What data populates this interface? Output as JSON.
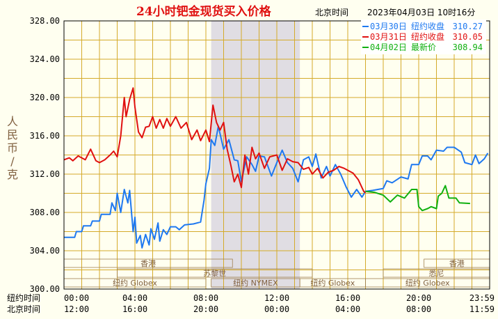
{
  "chart_data": {
    "type": "line",
    "title": "24小时钯金现货买入价格",
    "timestamp_label": "北京时间",
    "timestamp": "2023年04月03日 10时16分",
    "ylabel": "人民币/克",
    "ylim": [
      300,
      328
    ],
    "yticks": [
      "328.00",
      "324.00",
      "320.00",
      "316.00",
      "312.00",
      "308.00",
      "304.00",
      "300.00"
    ],
    "x_rows": [
      {
        "label": "纽约时间",
        "ticks": [
          "00:00",
          "04:00",
          "08:00",
          "12:00",
          "16:00",
          "20:00",
          "23:59"
        ]
      },
      {
        "label": "北京时间",
        "ticks": [
          "12:00",
          "16:00",
          "20:00",
          "00:00",
          "04:00",
          "08:00",
          "11:59"
        ]
      }
    ],
    "xlim": [
      0,
      24
    ],
    "legend": [
      {
        "name": "03月30日",
        "label": "纽约收盘",
        "value": "310.27",
        "color": "#1e78f0"
      },
      {
        "name": "03月31日",
        "label": "纽约收盘",
        "value": "310.05",
        "color": "#e01010"
      },
      {
        "name": "04月02日",
        "label": "最新价",
        "value": "308.94",
        "color": "#10b010"
      }
    ],
    "sessions": [
      {
        "row": 0,
        "label": "香港",
        "start": 0,
        "end": 9.5
      },
      {
        "row": 1,
        "label": "苏黎世",
        "start": 3,
        "end": 14
      },
      {
        "row": 2,
        "label": "纽约 Globex",
        "start": 0,
        "end": 8
      },
      {
        "row": 2,
        "label": "纽约 NYMEX",
        "start": 8.3,
        "end": 13.3
      },
      {
        "row": 2,
        "label": "纽约 Globex",
        "start": 13.3,
        "end": 17
      },
      {
        "row": 0,
        "label": "香港",
        "start": 20.3,
        "end": 24
      },
      {
        "row": 1,
        "label": "悉尼",
        "start": 18,
        "end": 24
      },
      {
        "row": 2,
        "label": "纽约 Globex",
        "start": 17,
        "end": 24
      }
    ],
    "shaded": [
      8.3,
      13.3
    ],
    "series": [
      {
        "name": "03月30日",
        "color": "#1e78f0",
        "points": [
          [
            0,
            305.4
          ],
          [
            0.6,
            305.4
          ],
          [
            0.7,
            306
          ],
          [
            1,
            306
          ],
          [
            1.1,
            306.6
          ],
          [
            1.5,
            306.6
          ],
          [
            1.6,
            307.1
          ],
          [
            2,
            307.1
          ],
          [
            2.1,
            307.8
          ],
          [
            2.6,
            307.8
          ],
          [
            2.7,
            309
          ],
          [
            2.9,
            308.2
          ],
          [
            3,
            310
          ],
          [
            3.2,
            308
          ],
          [
            3.4,
            310.4
          ],
          [
            3.6,
            309
          ],
          [
            3.7,
            310.3
          ],
          [
            3.9,
            306
          ],
          [
            4,
            307.5
          ],
          [
            4.1,
            304.8
          ],
          [
            4.3,
            305.6
          ],
          [
            4.4,
            304.3
          ],
          [
            4.6,
            305.7
          ],
          [
            4.8,
            304.6
          ],
          [
            4.9,
            306.3
          ],
          [
            5.1,
            305.2
          ],
          [
            5.3,
            306.9
          ],
          [
            5.4,
            305
          ],
          [
            5.6,
            306.2
          ],
          [
            5.8,
            305.7
          ],
          [
            6,
            306.5
          ],
          [
            6.3,
            306.5
          ],
          [
            6.5,
            306.2
          ],
          [
            6.8,
            306.7
          ],
          [
            7.3,
            306.8
          ],
          [
            7.7,
            307
          ],
          [
            7.9,
            309.3
          ],
          [
            8,
            311
          ],
          [
            8.2,
            312.6
          ],
          [
            8.3,
            315.6
          ],
          [
            8.5,
            315
          ],
          [
            8.7,
            317
          ],
          [
            9,
            314.6
          ],
          [
            9.3,
            315.6
          ],
          [
            9.6,
            313.5
          ],
          [
            9.8,
            313.4
          ],
          [
            10,
            311.2
          ],
          [
            10.3,
            313.8
          ],
          [
            10.6,
            313
          ],
          [
            10.8,
            312.3
          ],
          [
            11,
            313.9
          ],
          [
            11.3,
            313.8
          ],
          [
            11.7,
            311.8
          ],
          [
            12,
            313.2
          ],
          [
            12.3,
            314.5
          ],
          [
            12.6,
            313.2
          ],
          [
            12.9,
            312.6
          ],
          [
            13.2,
            311.2
          ],
          [
            13.5,
            313.5
          ],
          [
            13.8,
            313.8
          ],
          [
            14,
            312.8
          ],
          [
            14.2,
            314.1
          ],
          [
            14.5,
            311.6
          ],
          [
            14.8,
            312.8
          ],
          [
            15,
            311.8
          ],
          [
            15.3,
            313
          ],
          [
            15.6,
            312
          ],
          [
            15.9,
            310.7
          ],
          [
            16.2,
            309.6
          ],
          [
            16.5,
            310.4
          ],
          [
            16.8,
            309.6
          ],
          [
            17,
            310.2
          ],
          [
            17.4,
            310.3
          ],
          [
            18,
            310.5
          ],
          [
            18.2,
            311.3
          ],
          [
            18.5,
            311.1
          ],
          [
            19,
            311.7
          ],
          [
            19.4,
            311.5
          ],
          [
            19.6,
            313
          ],
          [
            20,
            313
          ],
          [
            20.2,
            313.9
          ],
          [
            20.5,
            313.9
          ],
          [
            20.7,
            313.5
          ],
          [
            21,
            314.5
          ],
          [
            21.4,
            314.4
          ],
          [
            21.6,
            314.8
          ],
          [
            22,
            314.8
          ],
          [
            22.4,
            314.3
          ],
          [
            22.6,
            313.2
          ],
          [
            23,
            313
          ],
          [
            23.2,
            314
          ],
          [
            23.4,
            313.1
          ],
          [
            23.7,
            313.6
          ],
          [
            23.9,
            314.2
          ]
        ]
      },
      {
        "name": "03月31日",
        "color": "#e01010",
        "points": [
          [
            0,
            313.5
          ],
          [
            0.3,
            313.7
          ],
          [
            0.5,
            313.4
          ],
          [
            0.8,
            313.9
          ],
          [
            1.2,
            313.5
          ],
          [
            1.5,
            314.6
          ],
          [
            1.8,
            313.4
          ],
          [
            2,
            313.2
          ],
          [
            2.3,
            313.5
          ],
          [
            2.6,
            314
          ],
          [
            2.8,
            314.4
          ],
          [
            3,
            313.8
          ],
          [
            3.2,
            316
          ],
          [
            3.4,
            320
          ],
          [
            3.5,
            318
          ],
          [
            3.7,
            319.8
          ],
          [
            3.9,
            321
          ],
          [
            4,
            319
          ],
          [
            4.2,
            316.4
          ],
          [
            4.4,
            315.8
          ],
          [
            4.6,
            316.9
          ],
          [
            4.8,
            317
          ],
          [
            5,
            318
          ],
          [
            5.2,
            316.8
          ],
          [
            5.4,
            317.7
          ],
          [
            5.6,
            316.8
          ],
          [
            5.8,
            317.8
          ],
          [
            6,
            317
          ],
          [
            6.3,
            318
          ],
          [
            6.6,
            316.8
          ],
          [
            6.9,
            317.4
          ],
          [
            7.2,
            315.6
          ],
          [
            7.5,
            316.6
          ],
          [
            7.7,
            315.5
          ],
          [
            8,
            316.6
          ],
          [
            8.2,
            315.4
          ],
          [
            8.4,
            319.2
          ],
          [
            8.6,
            317.4
          ],
          [
            8.8,
            316.6
          ],
          [
            9,
            317.4
          ],
          [
            9.2,
            314.6
          ],
          [
            9.4,
            313
          ],
          [
            9.6,
            311.2
          ],
          [
            9.8,
            312
          ],
          [
            10,
            310.6
          ],
          [
            10.2,
            314
          ],
          [
            10.4,
            312
          ],
          [
            10.6,
            314.8
          ],
          [
            10.8,
            313.6
          ],
          [
            11,
            314.2
          ],
          [
            11.3,
            312.6
          ],
          [
            11.6,
            313.8
          ],
          [
            12,
            314
          ],
          [
            12.3,
            312.4
          ],
          [
            12.6,
            313.6
          ],
          [
            12.9,
            313.3
          ],
          [
            13.2,
            313.2
          ],
          [
            13.5,
            312.5
          ],
          [
            13.8,
            312.7
          ],
          [
            14,
            312
          ],
          [
            14.3,
            312.6
          ],
          [
            14.6,
            311.6
          ],
          [
            14.9,
            312.2
          ],
          [
            15.2,
            312.4
          ],
          [
            15.5,
            312.8
          ],
          [
            15.8,
            312.6
          ],
          [
            16,
            312.4
          ],
          [
            16.3,
            312.1
          ],
          [
            16.6,
            311.4
          ],
          [
            16.9,
            310.2
          ],
          [
            17,
            310.05
          ]
        ]
      },
      {
        "name": "04月02日",
        "color": "#10b010",
        "points": [
          [
            17,
            310.2
          ],
          [
            17.5,
            310.1
          ],
          [
            18,
            309.8
          ],
          [
            18.4,
            309.1
          ],
          [
            18.8,
            309.8
          ],
          [
            19.2,
            309.5
          ],
          [
            19.6,
            310.4
          ],
          [
            19.9,
            310.4
          ],
          [
            20,
            308.6
          ],
          [
            20.2,
            308.2
          ],
          [
            20.5,
            308.4
          ],
          [
            20.7,
            308.6
          ],
          [
            21,
            308.4
          ],
          [
            21.1,
            309.7
          ],
          [
            21.3,
            310
          ],
          [
            21.5,
            310.8
          ],
          [
            21.7,
            309.5
          ],
          [
            22.1,
            309.5
          ],
          [
            22.3,
            309
          ],
          [
            22.9,
            308.94
          ]
        ]
      }
    ]
  }
}
